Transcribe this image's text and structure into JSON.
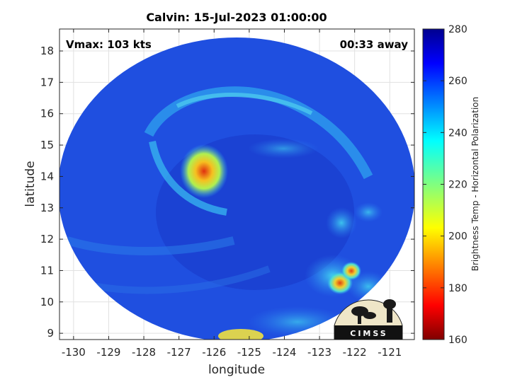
{
  "title": "Calvin: 15-Jul-2023 01:00:00",
  "annotations": {
    "vmax": "Vmax: 103 kts",
    "time_away": "00:33 away"
  },
  "map": {
    "xlabel": "longitude",
    "ylabel": "latitude",
    "xticks": [
      "-130",
      "-129",
      "-128",
      "-127",
      "-126",
      "-125",
      "-124",
      "-123",
      "-122",
      "-121"
    ],
    "yticks": [
      "18",
      "17",
      "16",
      "15",
      "14",
      "13",
      "12",
      "11",
      "10",
      "9"
    ],
    "xlim": [
      -130.4,
      -120.3
    ],
    "ylim": [
      8.8,
      18.7
    ],
    "grid": true,
    "field_type": "microwave brightness temperature swath (circular)",
    "storm_center_approx": {
      "lon": -126.2,
      "lat": 14.4
    }
  },
  "colorbar": {
    "label": "Brightness Temp - Horizontal Polarization",
    "ticks": [
      "280",
      "260",
      "240",
      "220",
      "200",
      "180",
      "160"
    ],
    "range": [
      160,
      280
    ],
    "colormap": "jet"
  },
  "logo": {
    "text": "CIMSS"
  },
  "colors": {
    "background_field": "#1f4fe0",
    "warm_core": "#f0c820",
    "hot_spot": "#e02a10",
    "axis": "#262626"
  }
}
